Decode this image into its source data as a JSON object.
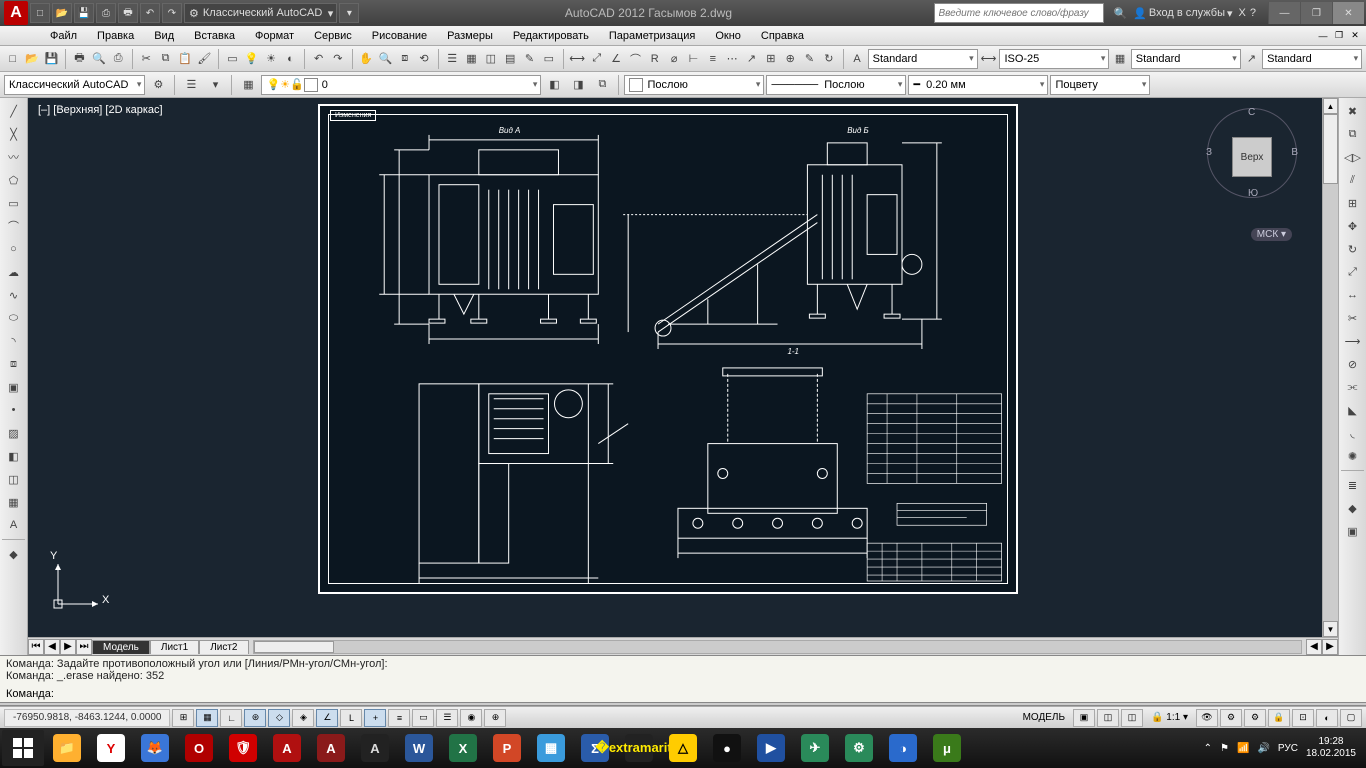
{
  "title": "AutoCAD 2012   Гасымов 2.dwg",
  "workspace_name": "Классический AutoCAD",
  "search_placeholder": "Введите ключевое слово/фразу",
  "signin_label": "Вход в службы",
  "menu": [
    "Файл",
    "Правка",
    "Вид",
    "Вставка",
    "Формат",
    "Сервис",
    "Рисование",
    "Размеры",
    "Редактировать",
    "Параметризация",
    "Окно",
    "Справка"
  ],
  "styles_row": {
    "text_style": "Standard",
    "dim_style": "ISO-25",
    "table_style": "Standard",
    "mleader_style": "Standard"
  },
  "props_row": {
    "workspace": "Классический AutoCAD",
    "layer": "0",
    "color_label": "Послою",
    "linetype_label": "Послою",
    "lineweight": "0.20 мм",
    "plot_style": "Поцвету"
  },
  "viewport_label": "[–] [Верхняя] [2D каркас]",
  "viewcube": {
    "top": "Верх",
    "n": "С",
    "s": "Ю",
    "e": "В",
    "w": "З",
    "wcs": "МСК"
  },
  "ucs": {
    "x": "X",
    "y": "Y"
  },
  "drawing": {
    "view_a": "Вид А",
    "view_b": "Вид Б",
    "section": "1-1",
    "stamp": "Изменения"
  },
  "tabs": {
    "model": "Модель",
    "layout1": "Лист1",
    "layout2": "Лист2"
  },
  "command": {
    "line1": "Команда: Задайте противоположный угол или [Линия/РМн-угол/СМн-угол]:",
    "line2": "Команда: _.erase найдено: 352",
    "prompt": "Команда:"
  },
  "status": {
    "coords": "-76950.9818, -8463.1244, 0.0000",
    "model": "МОДЕЛЬ",
    "scale": "1:1",
    "lang": "РУС"
  },
  "tray": {
    "time": "19:28",
    "date": "18.02.2015"
  },
  "colors": {
    "canvas_bg": "#1a2530",
    "sheet_bg": "#0b1620",
    "line": "#ffffff"
  },
  "taskbar_apps": [
    {
      "bg": "#ffb030",
      "fg": "#fff",
      "ch": "📁"
    },
    {
      "bg": "#ffffff",
      "fg": "#d00",
      "ch": "Y"
    },
    {
      "bg": "#3a76d8",
      "fg": "#ff9a00",
      "ch": "🦊"
    },
    {
      "bg": "#b00000",
      "fg": "#fff",
      "ch": "O"
    },
    {
      "bg": "#d00000",
      "fg": "#fff",
      "ch": "🛡"
    },
    {
      "bg": "#b01010",
      "fg": "#fff",
      "ch": "A"
    },
    {
      "bg": "#8a1a1a",
      "fg": "#fff",
      "ch": "A"
    },
    {
      "bg": "#222222",
      "fg": "#ddd",
      "ch": "A"
    },
    {
      "bg": "#2b579a",
      "fg": "#fff",
      "ch": "W"
    },
    {
      "bg": "#217346",
      "fg": "#fff",
      "ch": "X"
    },
    {
      "bg": "#d24726",
      "fg": "#fff",
      "ch": "P"
    },
    {
      "bg": "#3a9bdc",
      "fg": "#fff",
      "ch": "▦"
    },
    {
      "bg": "#2a5caa",
      "fg": "#fff",
      "ch": "Σ"
    },
    {
      "bg": "#222222",
      "fg": "#ffea00",
      "ch": "�extramarital"
    },
    {
      "bg": "#ffcc00",
      "fg": "#000",
      "ch": "△"
    },
    {
      "bg": "#111111",
      "fg": "#fff",
      "ch": "●"
    },
    {
      "bg": "#2050a0",
      "fg": "#fff",
      "ch": "▶"
    },
    {
      "bg": "#2a8a5a",
      "fg": "#fff",
      "ch": "✈"
    },
    {
      "bg": "#2a8a5a",
      "fg": "#fff",
      "ch": "⚙"
    },
    {
      "bg": "#2a6acc",
      "fg": "#fff",
      "ch": "◑"
    },
    {
      "bg": "#3a7a1a",
      "fg": "#fff",
      "ch": "μ"
    }
  ]
}
